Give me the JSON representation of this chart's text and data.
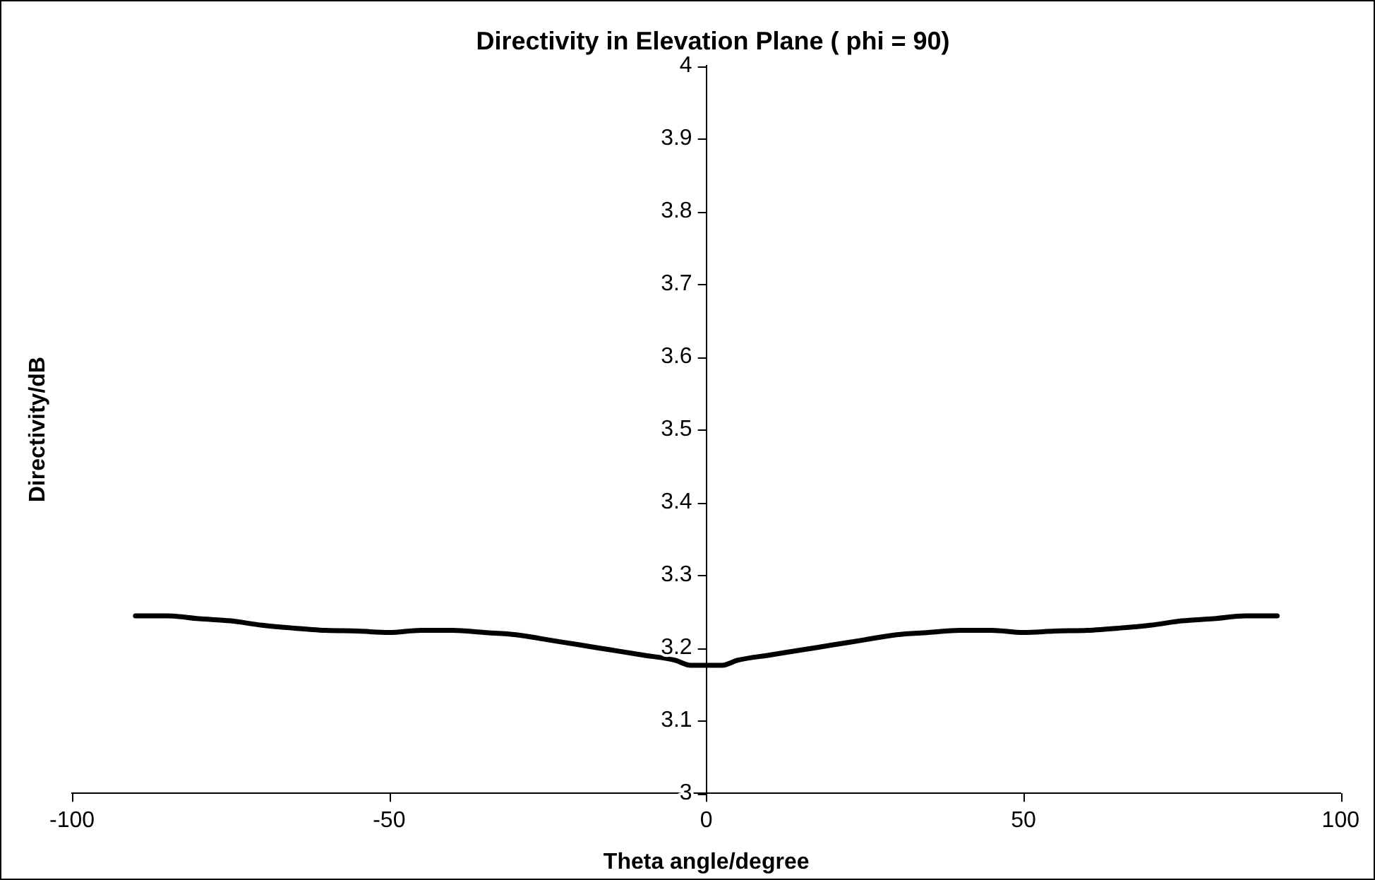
{
  "chart_data": {
    "type": "line",
    "title": "Directivity in Elevation Plane ( phi = 90)",
    "xlabel": "Theta angle/degree",
    "ylabel": "Directivity/dB",
    "x": [
      -90,
      -85,
      -80,
      -75,
      -70,
      -65,
      -60,
      -55,
      -50,
      -45,
      -40,
      -35,
      -30,
      -25,
      -20,
      -15,
      -10,
      -5,
      -2.5,
      0,
      2.5,
      5,
      10,
      15,
      20,
      25,
      30,
      35,
      40,
      45,
      50,
      55,
      60,
      65,
      70,
      75,
      80,
      85,
      90
    ],
    "series": [
      {
        "color": "#000000",
        "values": [
          3.244,
          3.244,
          3.24,
          3.237,
          3.231,
          3.227,
          3.224,
          3.223,
          3.221,
          3.224,
          3.224,
          3.221,
          3.218,
          3.211,
          3.204,
          3.197,
          3.19,
          3.183,
          3.176,
          3.176,
          3.176,
          3.183,
          3.19,
          3.197,
          3.204,
          3.211,
          3.218,
          3.221,
          3.224,
          3.224,
          3.221,
          3.223,
          3.224,
          3.227,
          3.231,
          3.237,
          3.24,
          3.244,
          3.244
        ]
      }
    ],
    "xlim": [
      -100,
      100
    ],
    "xticks": [
      -100,
      -50,
      0,
      50,
      100
    ],
    "ylim": [
      3,
      4
    ],
    "yticks": [
      3,
      3.1,
      3.2,
      3.3,
      3.4,
      3.5,
      3.6,
      3.7,
      3.8,
      3.9,
      4
    ],
    "grid": false,
    "legend": false,
    "marker": "none",
    "line_style": "solid"
  }
}
